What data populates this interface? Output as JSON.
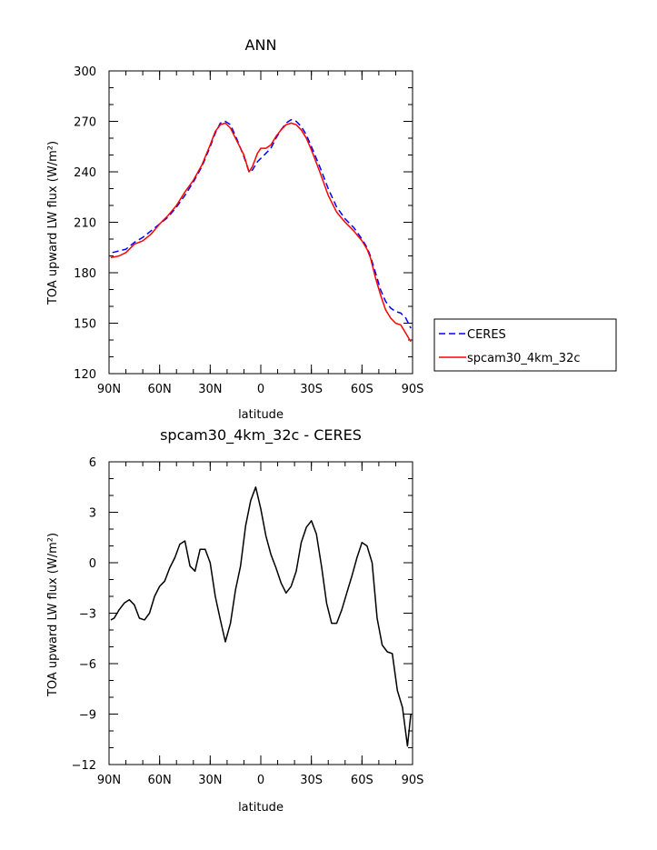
{
  "chart_data": [
    {
      "type": "line",
      "title": "ANN",
      "xlabel": "latitude",
      "ylabel": "TOA upward LW flux (W/m²)",
      "xlim": [
        -90,
        90
      ],
      "ylim": [
        120,
        300
      ],
      "xticks": [
        "90N",
        "60N",
        "30N",
        "0",
        "30S",
        "60S",
        "90S"
      ],
      "yticks": [
        "120",
        "150",
        "180",
        "210",
        "240",
        "270",
        "300"
      ],
      "legend_position": "outside-right",
      "series": [
        {
          "name": "CERES",
          "color": "#0000ff",
          "style": "dashed",
          "x": [
            -88,
            -80,
            -75,
            -70,
            -65,
            -60,
            -55,
            -50,
            -45,
            -40,
            -35,
            -30,
            -27,
            -24,
            -21,
            -18,
            -14,
            -10,
            -7,
            -5,
            -2,
            0,
            3,
            6,
            9,
            12,
            15,
            18,
            21,
            24,
            27,
            30,
            35,
            40,
            45,
            50,
            55,
            60,
            63,
            65,
            68,
            71,
            74,
            77,
            80,
            83,
            86,
            89
          ],
          "y": [
            192,
            194,
            198,
            201,
            205,
            209,
            213,
            219,
            226,
            234,
            243,
            255,
            263,
            269,
            270,
            268,
            259,
            249,
            240,
            241,
            246,
            248,
            251,
            254,
            260,
            265,
            269,
            271,
            270,
            267,
            262,
            255,
            243,
            230,
            219,
            212,
            207,
            200,
            195,
            190,
            180,
            170,
            163,
            159,
            157,
            156,
            153,
            147
          ]
        },
        {
          "name": "spcam30_4km_32c",
          "color": "#ff0000",
          "style": "solid",
          "x": [
            -89,
            -84,
            -80,
            -75,
            -70,
            -65,
            -60,
            -55,
            -50,
            -45,
            -40,
            -35,
            -30,
            -27,
            -24,
            -21,
            -18,
            -14,
            -10,
            -7,
            -5,
            -2,
            0,
            3,
            6,
            9,
            12,
            15,
            18,
            21,
            24,
            27,
            30,
            35,
            40,
            45,
            50,
            55,
            60,
            63,
            65,
            68,
            71,
            74,
            77,
            80,
            83,
            86,
            89
          ],
          "y": [
            189,
            190,
            192,
            197,
            199,
            203,
            209,
            214,
            220,
            228,
            235,
            244,
            256,
            264,
            268,
            269,
            266,
            258,
            250,
            240,
            243,
            251,
            254,
            254,
            256,
            261,
            265,
            268,
            269,
            268,
            265,
            260,
            253,
            240,
            226,
            216,
            210,
            205,
            199,
            194,
            189,
            177,
            167,
            158,
            153,
            150,
            149,
            144,
            139
          ]
        }
      ]
    },
    {
      "type": "line",
      "title": "spcam30_4km_32c - CERES",
      "xlabel": "latitude",
      "ylabel": "TOA upward LW flux (W/m²)",
      "xlim": [
        -90,
        90
      ],
      "ylim": [
        -12,
        6
      ],
      "xticks": [
        "90N",
        "60N",
        "30N",
        "0",
        "30S",
        "60S",
        "90S"
      ],
      "yticks": [
        "-12",
        "-9",
        "-6",
        "-3",
        "0",
        "3",
        "6"
      ],
      "series": [
        {
          "color": "#000000",
          "style": "solid",
          "x": [
            -89,
            -87,
            -84,
            -81,
            -78,
            -75,
            -72,
            -69,
            -66,
            -63,
            -60,
            -57,
            -54,
            -51,
            -48,
            -45,
            -42,
            -39,
            -36,
            -33,
            -30,
            -27,
            -24,
            -21,
            -18,
            -15,
            -12,
            -9,
            -6,
            -3,
            0,
            3,
            6,
            9,
            12,
            15,
            18,
            21,
            24,
            27,
            30,
            33,
            36,
            39,
            42,
            45,
            48,
            51,
            54,
            57,
            60,
            63,
            66,
            69,
            72,
            75,
            78,
            81,
            84,
            87,
            89
          ],
          "y": [
            -3.4,
            -3.3,
            -2.8,
            -2.4,
            -2.2,
            -2.5,
            -3.3,
            -3.4,
            -3.0,
            -2.0,
            -1.4,
            -1.1,
            -0.3,
            0.3,
            1.1,
            1.3,
            -0.2,
            -0.5,
            0.8,
            0.8,
            0.0,
            -2.0,
            -3.4,
            -4.7,
            -3.6,
            -1.6,
            -0.2,
            2.2,
            3.7,
            4.5,
            3.2,
            1.6,
            0.5,
            -0.3,
            -1.2,
            -1.8,
            -1.4,
            -0.5,
            1.2,
            2.1,
            2.5,
            1.7,
            -0.2,
            -2.4,
            -3.6,
            -3.6,
            -2.8,
            -1.8,
            -0.8,
            0.3,
            1.2,
            1.0,
            0.0,
            -3.3,
            -4.9,
            -5.3,
            -5.4,
            -7.6,
            -8.6,
            -10.9,
            -9.0
          ]
        }
      ]
    }
  ],
  "legend": [
    {
      "label": "CERES",
      "color": "#0000ff",
      "style": "dashed"
    },
    {
      "label": "spcam30_4km_32c",
      "color": "#ff0000",
      "style": "solid"
    }
  ]
}
